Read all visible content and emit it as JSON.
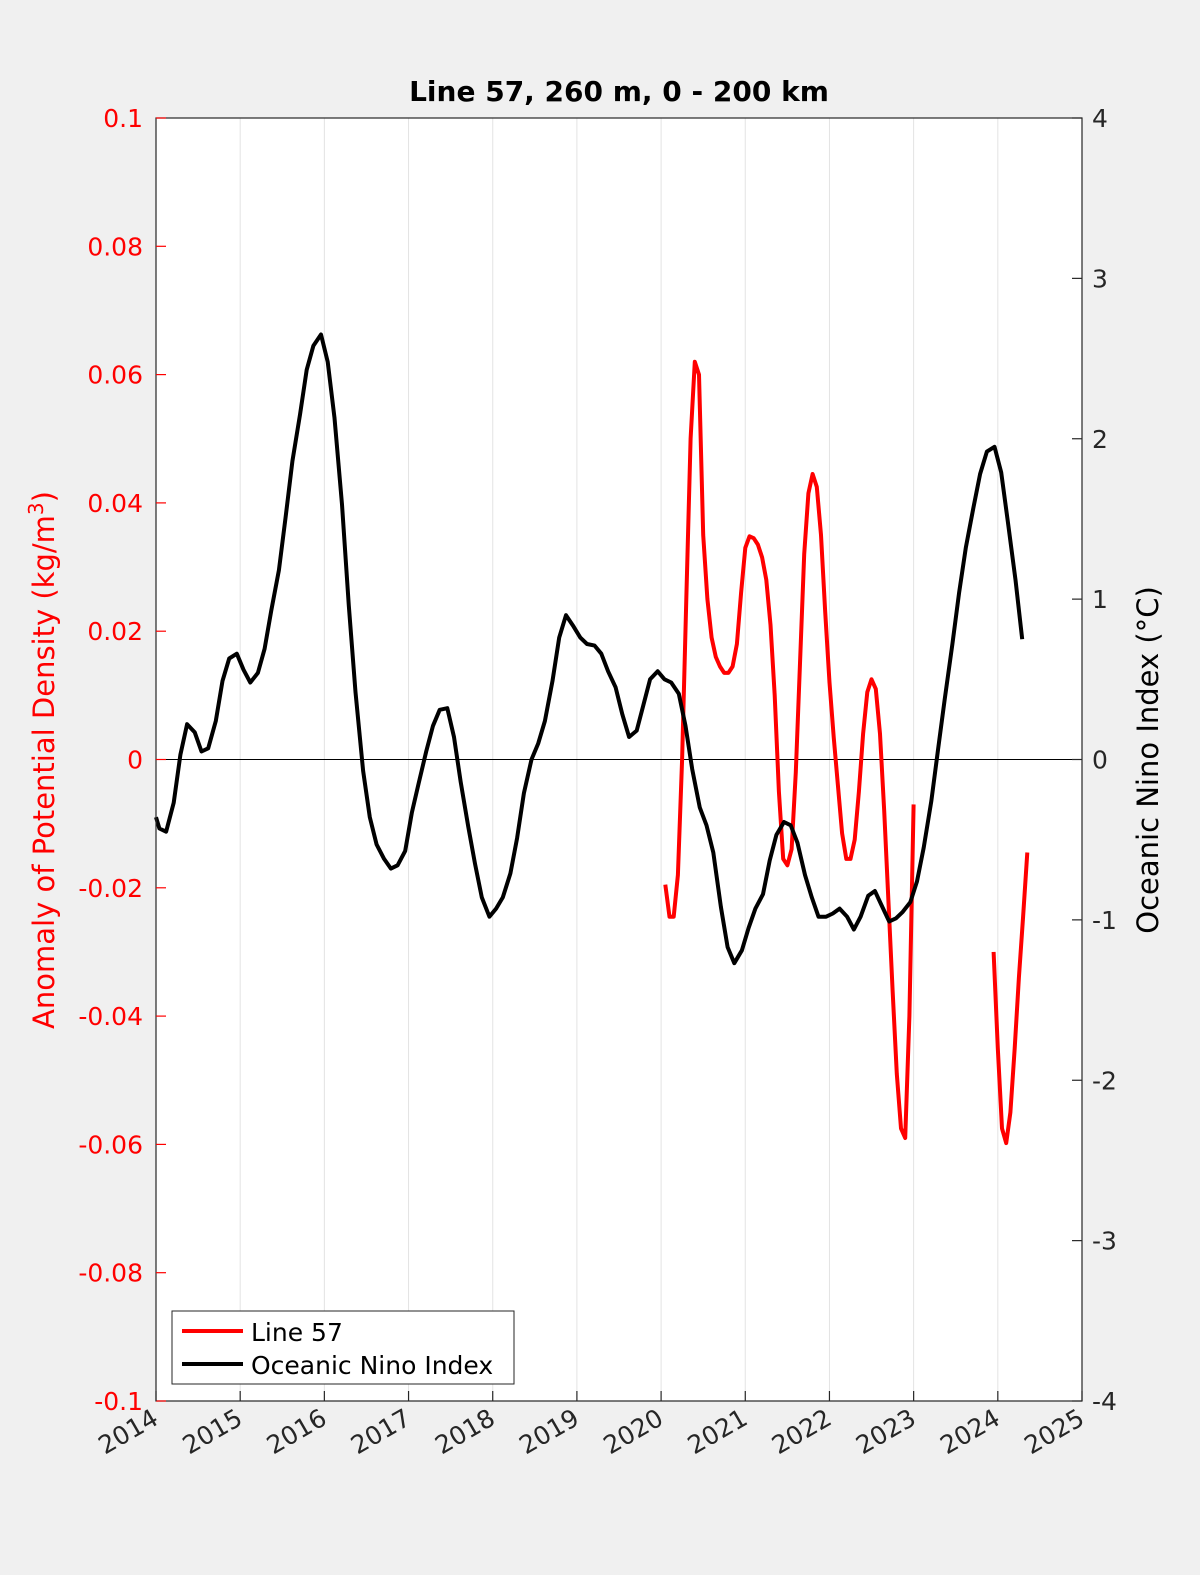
{
  "chart_data": {
    "type": "line",
    "title": "Line 57, 260 m, 0 - 200 km",
    "xlim": [
      2014,
      2025
    ],
    "x_ticks": [
      2014,
      2015,
      2016,
      2017,
      2018,
      2019,
      2020,
      2021,
      2022,
      2023,
      2024,
      2025
    ],
    "x_tick_labels": [
      "2014",
      "2015",
      "2016",
      "2017",
      "2018",
      "2019",
      "2020",
      "2021",
      "2022",
      "2023",
      "2024",
      "2025"
    ],
    "y_left": {
      "label": "Anomaly of Potential Density (kg/m3)",
      "label_prefix": "Anomaly of Potential Density (kg/m",
      "label_superscript": "3",
      "label_suffix": ")",
      "lim": [
        -0.1,
        0.1
      ],
      "ticks": [
        -0.1,
        -0.08,
        -0.06,
        -0.04,
        -0.02,
        0,
        0.02,
        0.04,
        0.06,
        0.08,
        0.1
      ],
      "tick_labels": [
        "-0.1",
        "-0.08",
        "-0.06",
        "-0.04",
        "-0.02",
        "0",
        "0.02",
        "0.04",
        "0.06",
        "0.08",
        "0.1"
      ],
      "color": "#ff0000"
    },
    "y_right": {
      "label": "Oceanic Nino Index (°C)",
      "lim": [
        -4,
        4
      ],
      "ticks": [
        -4,
        -3,
        -2,
        -1,
        0,
        1,
        2,
        3,
        4
      ],
      "tick_labels": [
        "-4",
        "-3",
        "-2",
        "-1",
        "0",
        "1",
        "2",
        "3",
        "4"
      ],
      "color": "#000000"
    },
    "grid": "vertical",
    "zero_line": true,
    "legend": {
      "location": "bottom-left",
      "entries": [
        "Line 57",
        "Oceanic Nino Index"
      ]
    },
    "series": [
      {
        "name": "Line 57",
        "axis": "left",
        "color": "#ff0000",
        "segments": [
          [
            [
              2020.05,
              -0.0195
            ],
            [
              2020.1,
              -0.0245
            ],
            [
              2020.15,
              -0.0245
            ],
            [
              2020.2,
              -0.018
            ],
            [
              2020.25,
              0.0
            ],
            [
              2020.3,
              0.025
            ],
            [
              2020.35,
              0.05
            ],
            [
              2020.4,
              0.062
            ],
            [
              2020.45,
              0.06
            ],
            [
              2020.5,
              0.035
            ],
            [
              2020.55,
              0.025
            ],
            [
              2020.6,
              0.019
            ],
            [
              2020.65,
              0.016
            ],
            [
              2020.7,
              0.0145
            ],
            [
              2020.75,
              0.0135
            ],
            [
              2020.8,
              0.0135
            ],
            [
              2020.85,
              0.0145
            ],
            [
              2020.9,
              0.018
            ],
            [
              2020.95,
              0.026
            ],
            [
              2021.0,
              0.033
            ],
            [
              2021.05,
              0.0348
            ],
            [
              2021.1,
              0.0345
            ],
            [
              2021.15,
              0.0335
            ],
            [
              2021.2,
              0.0315
            ],
            [
              2021.25,
              0.028
            ],
            [
              2021.3,
              0.021
            ],
            [
              2021.35,
              0.01
            ],
            [
              2021.4,
              -0.005
            ],
            [
              2021.45,
              -0.0155
            ],
            [
              2021.5,
              -0.0165
            ],
            [
              2021.55,
              -0.014
            ],
            [
              2021.6,
              -0.002
            ],
            [
              2021.65,
              0.015
            ],
            [
              2021.7,
              0.032
            ],
            [
              2021.75,
              0.0415
            ],
            [
              2021.8,
              0.0445
            ],
            [
              2021.85,
              0.0425
            ],
            [
              2021.9,
              0.035
            ],
            [
              2021.95,
              0.023
            ],
            [
              2022.0,
              0.012
            ],
            [
              2022.05,
              0.0035
            ],
            [
              2022.1,
              -0.004
            ],
            [
              2022.15,
              -0.0115
            ],
            [
              2022.2,
              -0.0155
            ],
            [
              2022.25,
              -0.0155
            ],
            [
              2022.3,
              -0.0125
            ],
            [
              2022.35,
              -0.005
            ],
            [
              2022.4,
              0.004
            ],
            [
              2022.45,
              0.0105
            ],
            [
              2022.5,
              0.0125
            ],
            [
              2022.55,
              0.011
            ],
            [
              2022.6,
              0.004
            ],
            [
              2022.65,
              -0.008
            ],
            [
              2022.7,
              -0.022
            ],
            [
              2022.75,
              -0.036
            ],
            [
              2022.8,
              -0.049
            ],
            [
              2022.85,
              -0.0575
            ],
            [
              2022.9,
              -0.059
            ],
            [
              2022.95,
              -0.04
            ],
            [
              2023.0,
              -0.007
            ]
          ],
          [
            [
              2023.95,
              -0.03
            ],
            [
              2024.0,
              -0.045
            ],
            [
              2024.05,
              -0.0575
            ],
            [
              2024.1,
              -0.0598
            ],
            [
              2024.15,
              -0.055
            ],
            [
              2024.2,
              -0.045
            ],
            [
              2024.25,
              -0.034
            ],
            [
              2024.3,
              -0.0245
            ],
            [
              2024.35,
              -0.0145
            ]
          ]
        ]
      },
      {
        "name": "Oceanic Nino Index",
        "axis": "right",
        "color": "#000000",
        "segments": [
          [
            [
              2014.0,
              -0.36
            ],
            [
              2014.04,
              -0.43
            ],
            [
              2014.12,
              -0.45
            ],
            [
              2014.21,
              -0.27
            ],
            [
              2014.29,
              0.03
            ],
            [
              2014.37,
              0.22
            ],
            [
              2014.46,
              0.17
            ],
            [
              2014.54,
              0.05
            ],
            [
              2014.62,
              0.07
            ],
            [
              2014.71,
              0.24
            ],
            [
              2014.79,
              0.49
            ],
            [
              2014.87,
              0.63
            ],
            [
              2014.96,
              0.66
            ],
            [
              2015.04,
              0.56
            ],
            [
              2015.12,
              0.48
            ],
            [
              2015.21,
              0.54
            ],
            [
              2015.29,
              0.69
            ],
            [
              2015.37,
              0.93
            ],
            [
              2015.46,
              1.18
            ],
            [
              2015.54,
              1.51
            ],
            [
              2015.62,
              1.86
            ],
            [
              2015.71,
              2.15
            ],
            [
              2015.79,
              2.43
            ],
            [
              2015.87,
              2.58
            ],
            [
              2015.96,
              2.65
            ],
            [
              2016.04,
              2.48
            ],
            [
              2016.12,
              2.13
            ],
            [
              2016.21,
              1.59
            ],
            [
              2016.29,
              0.96
            ],
            [
              2016.37,
              0.42
            ],
            [
              2016.46,
              -0.07
            ],
            [
              2016.54,
              -0.36
            ],
            [
              2016.62,
              -0.53
            ],
            [
              2016.71,
              -0.62
            ],
            [
              2016.79,
              -0.68
            ],
            [
              2016.87,
              -0.66
            ],
            [
              2016.96,
              -0.57
            ],
            [
              2017.04,
              -0.33
            ],
            [
              2017.12,
              -0.15
            ],
            [
              2017.21,
              0.05
            ],
            [
              2017.29,
              0.21
            ],
            [
              2017.37,
              0.31
            ],
            [
              2017.46,
              0.32
            ],
            [
              2017.54,
              0.14
            ],
            [
              2017.62,
              -0.14
            ],
            [
              2017.71,
              -0.42
            ],
            [
              2017.79,
              -0.65
            ],
            [
              2017.87,
              -0.86
            ],
            [
              2017.96,
              -0.98
            ],
            [
              2018.04,
              -0.93
            ],
            [
              2018.12,
              -0.86
            ],
            [
              2018.21,
              -0.71
            ],
            [
              2018.29,
              -0.49
            ],
            [
              2018.37,
              -0.21
            ],
            [
              2018.46,
              0.0
            ],
            [
              2018.54,
              0.1
            ],
            [
              2018.62,
              0.24
            ],
            [
              2018.71,
              0.49
            ],
            [
              2018.79,
              0.76
            ],
            [
              2018.87,
              0.9
            ],
            [
              2018.96,
              0.83
            ],
            [
              2019.04,
              0.76
            ],
            [
              2019.12,
              0.72
            ],
            [
              2019.21,
              0.71
            ],
            [
              2019.29,
              0.66
            ],
            [
              2019.37,
              0.55
            ],
            [
              2019.46,
              0.45
            ],
            [
              2019.54,
              0.28
            ],
            [
              2019.62,
              0.14
            ],
            [
              2019.71,
              0.18
            ],
            [
              2019.79,
              0.34
            ],
            [
              2019.87,
              0.5
            ],
            [
              2019.96,
              0.55
            ],
            [
              2020.04,
              0.5
            ],
            [
              2020.12,
              0.48
            ],
            [
              2020.21,
              0.41
            ],
            [
              2020.29,
              0.21
            ],
            [
              2020.37,
              -0.06
            ],
            [
              2020.46,
              -0.3
            ],
            [
              2020.54,
              -0.41
            ],
            [
              2020.62,
              -0.58
            ],
            [
              2020.71,
              -0.92
            ],
            [
              2020.79,
              -1.17
            ],
            [
              2020.87,
              -1.27
            ],
            [
              2020.96,
              -1.19
            ],
            [
              2021.04,
              -1.05
            ],
            [
              2021.12,
              -0.93
            ],
            [
              2021.21,
              -0.84
            ],
            [
              2021.29,
              -0.63
            ],
            [
              2021.37,
              -0.47
            ],
            [
              2021.46,
              -0.39
            ],
            [
              2021.54,
              -0.41
            ],
            [
              2021.62,
              -0.52
            ],
            [
              2021.71,
              -0.72
            ],
            [
              2021.79,
              -0.86
            ],
            [
              2021.87,
              -0.98
            ],
            [
              2021.96,
              -0.98
            ],
            [
              2022.04,
              -0.96
            ],
            [
              2022.12,
              -0.93
            ],
            [
              2022.21,
              -0.98
            ],
            [
              2022.29,
              -1.06
            ],
            [
              2022.37,
              -0.98
            ],
            [
              2022.46,
              -0.85
            ],
            [
              2022.54,
              -0.82
            ],
            [
              2022.62,
              -0.91
            ],
            [
              2022.71,
              -1.01
            ],
            [
              2022.79,
              -0.99
            ],
            [
              2022.87,
              -0.95
            ],
            [
              2022.96,
              -0.89
            ],
            [
              2023.04,
              -0.76
            ],
            [
              2023.12,
              -0.55
            ],
            [
              2023.21,
              -0.26
            ],
            [
              2023.29,
              0.06
            ],
            [
              2023.37,
              0.38
            ],
            [
              2023.46,
              0.72
            ],
            [
              2023.54,
              1.04
            ],
            [
              2023.62,
              1.32
            ],
            [
              2023.71,
              1.57
            ],
            [
              2023.79,
              1.78
            ],
            [
              2023.87,
              1.92
            ],
            [
              2023.96,
              1.95
            ],
            [
              2024.04,
              1.79
            ],
            [
              2024.12,
              1.48
            ],
            [
              2024.21,
              1.12
            ],
            [
              2024.29,
              0.75
            ]
          ]
        ]
      }
    ]
  }
}
